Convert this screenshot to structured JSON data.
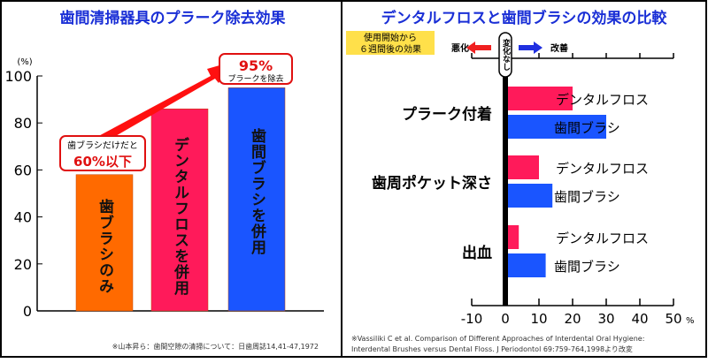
{
  "chart_data": [
    {
      "type": "bar",
      "title": "歯間清掃器具のプラーク除去効果",
      "ylabel": "(%)",
      "ylim": [
        0,
        100
      ],
      "yticks": [
        "0",
        "20",
        "40",
        "60",
        "80",
        "100"
      ],
      "categories": [
        "歯ブラシのみ",
        "デンタルフロスを併用",
        "歯間ブラシを併用"
      ],
      "values": [
        58,
        86,
        95
      ],
      "colors": [
        "#ff6a00",
        "#ff1a5a",
        "#1a55ff"
      ],
      "annotations": {
        "low_line1": "歯ブラシだけだと",
        "low_line2": "60%以下",
        "high_line1": "95%",
        "high_line2": "プラークを除去"
      },
      "footnote": "※山本昇ら：歯間空隙の清掃について：日歯周誌14,41-47,1972"
    },
    {
      "type": "bar",
      "orientation": "horizontal",
      "title": "デンタルフロスと歯間ブラシの効果の比較",
      "legend_box": [
        "使用開始から",
        "６週間後の効果"
      ],
      "worse_label": "悪化",
      "better_label": "改善",
      "no_change_label": "変化なし",
      "xlim": [
        -10,
        50
      ],
      "xticks": [
        "-10",
        "0",
        "10",
        "20",
        "30",
        "40",
        "50"
      ],
      "xunit": "%",
      "categories": [
        "プラーク付着",
        "歯周ポケット深さ",
        "出血"
      ],
      "series": [
        {
          "name": "デンタルフロス",
          "color": "#ff1a5a",
          "values": [
            20,
            10,
            4
          ]
        },
        {
          "name": "歯間ブラシ",
          "color": "#1a55ff",
          "values": [
            30,
            14,
            12
          ]
        }
      ],
      "footnote_line1": "※Vassiliki C et al. Comparison of Different Approaches of Interdental Oral Hygiene:",
      "footnote_line2": "Interdental Brushes versus Dental Floss. J Periodontol 69:759-764,1998より改変"
    }
  ]
}
